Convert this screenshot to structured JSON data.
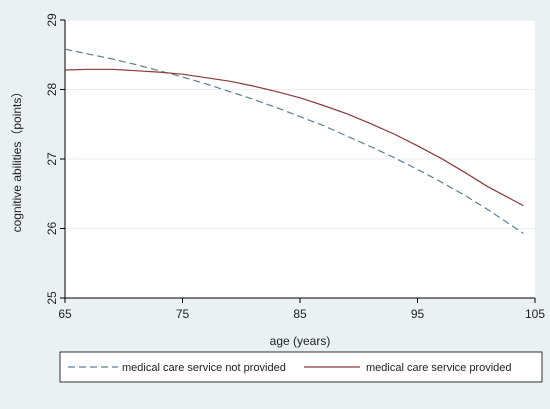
{
  "chart_data": {
    "type": "line",
    "title": "",
    "xlabel": "age (years)",
    "ylabel": "cognitive abilities（points）",
    "xlim": [
      65,
      105
    ],
    "ylim": [
      25,
      29
    ],
    "x_ticks": [
      "65",
      "75",
      "85",
      "95",
      "105"
    ],
    "y_ticks": [
      "25",
      "26",
      "27",
      "28",
      "29"
    ],
    "grid": "horizontal",
    "legend_position": "bottom",
    "series": [
      {
        "name": "medical care service not provided",
        "style": "dashed",
        "color": "#5b7f97",
        "x": [
          65,
          67,
          69,
          71,
          73,
          75,
          77,
          79,
          81,
          83,
          85,
          87,
          89,
          91,
          93,
          95,
          97,
          99,
          101,
          104
        ],
        "y": [
          28.58,
          28.51,
          28.44,
          28.36,
          28.27,
          28.18,
          28.08,
          27.97,
          27.86,
          27.74,
          27.61,
          27.48,
          27.33,
          27.18,
          27.02,
          26.85,
          26.67,
          26.48,
          26.27,
          25.93
        ]
      },
      {
        "name": "medical care service provided",
        "style": "solid",
        "color": "#8b3a3a",
        "x": [
          65,
          67,
          69,
          71,
          73,
          75,
          77,
          79,
          81,
          83,
          85,
          87,
          89,
          91,
          93,
          95,
          97,
          99,
          101,
          104
        ],
        "y": [
          28.28,
          28.29,
          28.29,
          28.27,
          28.25,
          28.22,
          28.17,
          28.12,
          28.05,
          27.97,
          27.88,
          27.77,
          27.65,
          27.51,
          27.36,
          27.19,
          27.01,
          26.81,
          26.6,
          26.33
        ]
      }
    ]
  }
}
